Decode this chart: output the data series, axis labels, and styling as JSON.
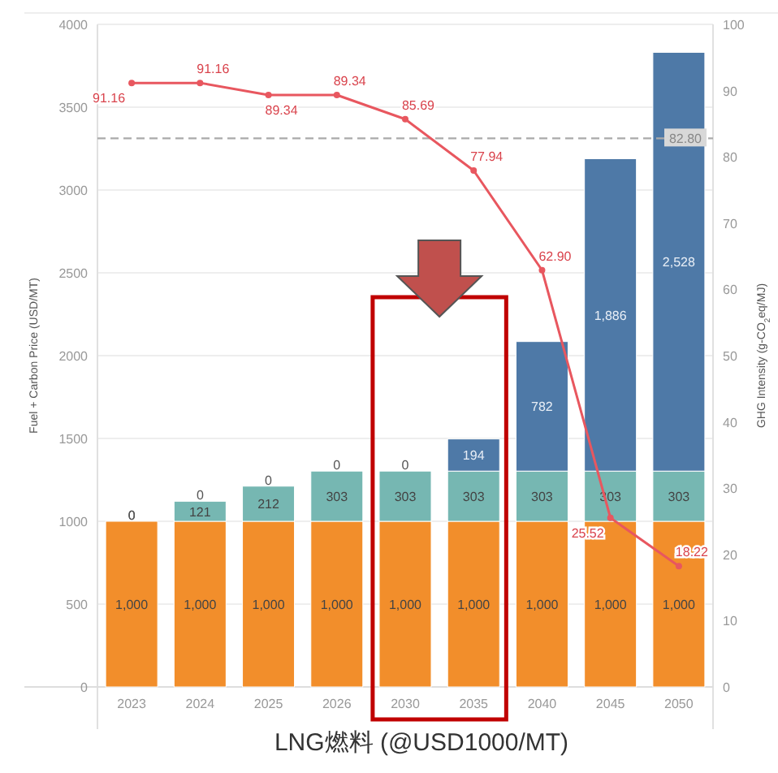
{
  "chart_data": {
    "type": "bar",
    "stacked": true,
    "xlabel": "LNG燃料 (@USD1000/MT)",
    "ylabel": "Fuel + Carbon Price (USD/MT)",
    "y2label": "GHG Intensity (g-CO$_{2}$eq/MJ)",
    "categories": [
      "2023",
      "2024",
      "2025",
      "2026",
      "2030",
      "2035",
      "2040",
      "2045",
      "2050"
    ],
    "series": [
      {
        "color": "#f28e2b",
        "values": [
          1000,
          1000,
          1000,
          1000,
          1000,
          1000,
          1000,
          1000,
          1000
        ],
        "value_labels": [
          "1,000",
          "1,000",
          "1,000",
          "1,000",
          "1,000",
          "1,000",
          "1,000",
          "1,000",
          "1,000"
        ]
      },
      {
        "color": "#76b7b2",
        "values": [
          0,
          121,
          212,
          303,
          303,
          303,
          303,
          303,
          303
        ],
        "value_labels": [
          "0",
          "121",
          "212",
          "303",
          "303",
          "303",
          "303",
          "303",
          "303"
        ]
      },
      {
        "color": "#4e79a7",
        "values": [
          0,
          0,
          0,
          0,
          0,
          194,
          782,
          1886,
          2528
        ],
        "value_labels": [
          "0",
          "0",
          "0",
          "0",
          "0",
          "194",
          "782",
          "1,886",
          "2,528"
        ]
      },
      {
        "type": "line",
        "axis": "y2",
        "color": "#e8575f",
        "marker": "circle",
        "values": [
          91.16,
          91.16,
          89.34,
          89.34,
          85.69,
          77.94,
          62.9,
          25.52,
          18.22
        ],
        "value_labels": [
          "91.16",
          "91.16",
          "89.34",
          "89.34",
          "85.69",
          "77.94",
          "62.90",
          "25.52",
          "18.22"
        ]
      }
    ],
    "ylim": [
      0,
      4000
    ],
    "yticks": [
      0,
      500,
      1000,
      1500,
      2000,
      2500,
      3000,
      3500,
      4000
    ],
    "y2lim": [
      0,
      100
    ],
    "y2ticks": [
      0,
      10,
      20,
      30,
      40,
      50,
      60,
      70,
      80,
      90,
      100
    ],
    "ref_lines": [
      {
        "axis": "y2",
        "value": 82.8,
        "label": "82.80",
        "color": "#aaaaaa",
        "line_style": "dashed"
      }
    ],
    "grid": "y"
  }
}
